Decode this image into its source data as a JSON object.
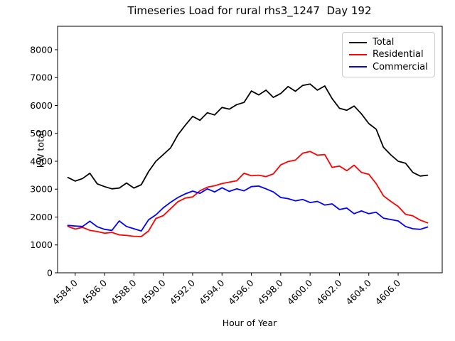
{
  "chart_data": {
    "type": "line",
    "title": "Timeseries Load for rural rhs3_1247  Day 192",
    "xlabel": "Hour of Year",
    "ylabel": "kW total",
    "xlim": [
      4582.8,
      4609.0
    ],
    "ylim": [
      0,
      8840
    ],
    "grid": false,
    "legend_position": "upper right",
    "x_ticks": [
      4584,
      4586,
      4588,
      4590,
      4592,
      4594,
      4596,
      4598,
      4600,
      4602,
      4604,
      4606
    ],
    "x_tick_labels": [
      "4584.0",
      "4586.0",
      "4588.0",
      "4590.0",
      "4592.0",
      "4594.0",
      "4596.0",
      "4598.0",
      "4600.0",
      "4602.0",
      "4604.0",
      "4606.0"
    ],
    "x_tick_rotation": 45,
    "y_ticks": [
      0,
      1000,
      2000,
      3000,
      4000,
      5000,
      6000,
      7000,
      8000
    ],
    "y_tick_labels": [
      "0",
      "1000",
      "2000",
      "3000",
      "4000",
      "5000",
      "6000",
      "7000",
      "8000"
    ],
    "x": [
      4583.5,
      4584.0,
      4584.5,
      4585.0,
      4585.5,
      4586.0,
      4586.5,
      4587.0,
      4587.5,
      4588.0,
      4588.5,
      4589.0,
      4589.5,
      4590.0,
      4590.5,
      4591.0,
      4591.5,
      4592.0,
      4592.5,
      4593.0,
      4593.5,
      4594.0,
      4594.5,
      4595.0,
      4595.5,
      4596.0,
      4596.5,
      4597.0,
      4597.5,
      4598.0,
      4598.5,
      4599.0,
      4599.5,
      4600.0,
      4600.5,
      4601.0,
      4601.5,
      4602.0,
      4602.5,
      4603.0,
      4603.5,
      4604.0,
      4604.5,
      4605.0,
      4605.5,
      4606.0,
      4606.5,
      4607.0,
      4607.5,
      4608.0
    ],
    "series": [
      {
        "name": "Total",
        "color": "#000000",
        "values": [
          3420,
          3290,
          3380,
          3570,
          3190,
          3090,
          3010,
          3040,
          3220,
          3040,
          3160,
          3630,
          4000,
          4240,
          4480,
          4950,
          5290,
          5610,
          5470,
          5740,
          5660,
          5930,
          5870,
          6030,
          6110,
          6520,
          6380,
          6550,
          6290,
          6430,
          6680,
          6510,
          6720,
          6770,
          6550,
          6700,
          6250,
          5900,
          5830,
          5980,
          5700,
          5350,
          5150,
          4500,
          4230,
          4000,
          3930,
          3600,
          3470,
          3500
        ]
      },
      {
        "name": "Residential",
        "color": "#ff0000",
        "values": [
          1660,
          1570,
          1630,
          1520,
          1480,
          1420,
          1450,
          1360,
          1340,
          1310,
          1300,
          1500,
          1950,
          2050,
          2300,
          2550,
          2680,
          2720,
          2940,
          3070,
          3120,
          3200,
          3250,
          3300,
          3570,
          3480,
          3500,
          3450,
          3550,
          3870,
          3990,
          4040,
          4290,
          4350,
          4220,
          4240,
          3780,
          3830,
          3660,
          3860,
          3600,
          3530,
          3200,
          2760,
          2560,
          2380,
          2100,
          2040,
          1890,
          1790
        ]
      },
      {
        "name": "Commercial",
        "color": "#0000ff",
        "values": [
          1700,
          1680,
          1660,
          1850,
          1650,
          1560,
          1520,
          1860,
          1660,
          1580,
          1500,
          1900,
          2080,
          2330,
          2530,
          2700,
          2830,
          2930,
          2850,
          3010,
          2900,
          3050,
          2920,
          3010,
          2940,
          3090,
          3110,
          3010,
          2900,
          2700,
          2660,
          2580,
          2630,
          2520,
          2560,
          2430,
          2470,
          2270,
          2320,
          2120,
          2220,
          2120,
          2170,
          1960,
          1910,
          1860,
          1660,
          1580,
          1560,
          1640
        ]
      }
    ]
  }
}
